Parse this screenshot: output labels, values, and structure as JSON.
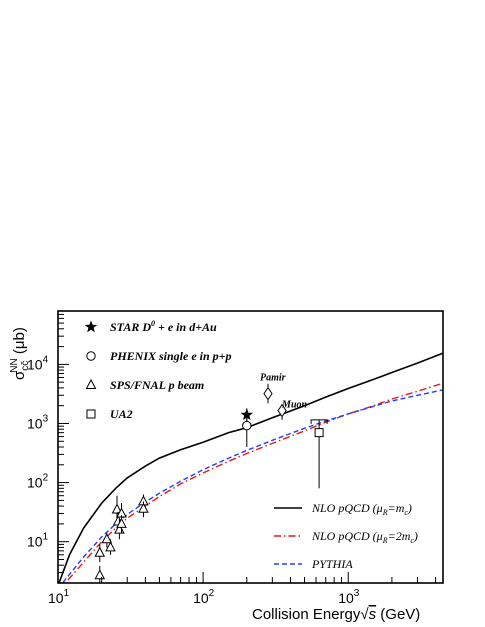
{
  "chart_data": {
    "type": "scatter",
    "title": "",
    "xlabel": "Collision Energy √s (GeV)",
    "xlabel_parts": {
      "prefix": "Collision Energy",
      "sqrt": "s",
      "suffix": " (GeV)"
    },
    "ylabel": "σcc̄NN (μb)",
    "ylabel_parts": {
      "sigma": "σ",
      "sub": "cc̄",
      "sup": "NN",
      "unit": " (μb)"
    },
    "xscale": "log",
    "yscale": "log",
    "xlim": [
      10,
      4500
    ],
    "ylim": [
      2,
      80000
    ],
    "x_ticks": [
      {
        "value": 10,
        "base": "10",
        "exp": "1"
      },
      {
        "value": 100,
        "base": "10",
        "exp": "2"
      },
      {
        "value": 1000,
        "base": "10",
        "exp": "3"
      }
    ],
    "y_ticks": [
      {
        "value": 10,
        "base": "10",
        "exp": "1"
      },
      {
        "value": 100,
        "base": "10",
        "exp": "2"
      },
      {
        "value": 1000,
        "base": "10",
        "exp": "3"
      },
      {
        "value": 10000,
        "base": "10",
        "exp": "4"
      }
    ],
    "grid": false,
    "legend_position": "top-left",
    "series": [
      {
        "name": "STAR D0 + e in d+Au",
        "label_parts": {
          "main": "STAR D",
          "sup": "0",
          "rest": " + e in d+Au"
        },
        "marker": "filled-star",
        "points": [
          {
            "x": 200,
            "y": 1400,
            "err_low": 400,
            "err_high": 400
          }
        ]
      },
      {
        "name": "PHENIX single e in p+p",
        "marker": "open-circle",
        "points": [
          {
            "x": 200,
            "y": 920,
            "err_low": 520,
            "err_high": 350
          }
        ]
      },
      {
        "name": "SPS/FNAL p beam",
        "marker": "open-triangle",
        "points": [
          {
            "x": 19.4,
            "y": 2.7,
            "err_low": 0.8,
            "err_high": 1.2
          },
          {
            "x": 19.4,
            "y": 6.5,
            "err_low": 2.0,
            "err_high": 2.5
          },
          {
            "x": 21.7,
            "y": 11,
            "err_low": 3,
            "err_high": 3
          },
          {
            "x": 23.0,
            "y": 8,
            "err_low": 2,
            "err_high": 3
          },
          {
            "x": 25.5,
            "y": 35,
            "err_low": 15,
            "err_high": 25
          },
          {
            "x": 26.0,
            "y": 22,
            "err_low": 8,
            "err_high": 10
          },
          {
            "x": 26.5,
            "y": 16,
            "err_low": 5,
            "err_high": 8
          },
          {
            "x": 27.4,
            "y": 30,
            "err_low": 10,
            "err_high": 15
          },
          {
            "x": 27.4,
            "y": 20,
            "err_low": 6,
            "err_high": 8
          },
          {
            "x": 38.8,
            "y": 48,
            "err_low": 12,
            "err_high": 15
          },
          {
            "x": 38.8,
            "y": 36,
            "err_low": 10,
            "err_high": 12
          }
        ]
      },
      {
        "name": "UA2",
        "marker": "open-square",
        "points": [
          {
            "x": 630,
            "y": 700,
            "err_low": 620,
            "err_high": 450
          }
        ]
      },
      {
        "name": "Pamir",
        "marker": "open-diamond",
        "points": [
          {
            "x": 280,
            "y": 3200,
            "err_low": 1000,
            "err_high": 1500
          }
        ]
      },
      {
        "name": "Muon",
        "marker": "open-diamond",
        "points": [
          {
            "x": 350,
            "y": 1650,
            "err_low": 500,
            "err_high": 400
          }
        ]
      }
    ],
    "curves": [
      {
        "name": "NLO pQCD (μR=mc)",
        "label_parts": {
          "pre": "NLO pQCD (μ",
          "sub1": "R",
          "mid": "=m",
          "sub2": "c",
          "post": ")"
        },
        "style": "solid",
        "color": "#000000",
        "x": [
          10,
          12,
          15,
          20,
          25,
          30,
          40,
          50,
          70,
          100,
          150,
          200,
          300,
          500,
          700,
          1000,
          1500,
          2000,
          3000,
          4500
        ],
        "y": [
          1.8,
          6,
          17,
          45,
          80,
          120,
          190,
          260,
          360,
          480,
          700,
          850,
          1250,
          2000,
          2800,
          3900,
          5600,
          7300,
          10500,
          15500
        ]
      },
      {
        "name": "NLO pQCD (μR=2mc)",
        "label_parts": {
          "pre": "NLO pQCD (μ",
          "sub1": "R",
          "mid": "=2m",
          "sub2": "c",
          "post": ")"
        },
        "style": "dash-dot",
        "color": "#e31a1c",
        "x": [
          10,
          12,
          15,
          20,
          25,
          30,
          40,
          50,
          70,
          100,
          150,
          200,
          300,
          500,
          700,
          1000,
          1500,
          2000,
          3000,
          4500
        ],
        "y": [
          1.5,
          2.4,
          4.5,
          10,
          17,
          25,
          40,
          58,
          95,
          145,
          230,
          310,
          460,
          750,
          1050,
          1450,
          2000,
          2600,
          3500,
          4800
        ]
      },
      {
        "name": "PYTHIA",
        "style": "dashed",
        "color": "#1f3fff",
        "x": [
          10,
          12,
          15,
          20,
          25,
          30,
          40,
          50,
          70,
          100,
          150,
          200,
          300,
          500,
          700,
          1000,
          1500,
          2000,
          3000,
          4500
        ],
        "y": [
          1.6,
          2.8,
          5.5,
          12,
          20,
          29,
          47,
          66,
          105,
          165,
          260,
          350,
          520,
          830,
          1100,
          1450,
          1950,
          2400,
          3000,
          3700
        ]
      }
    ],
    "annotations": [
      "Pamir",
      "Muon"
    ]
  }
}
